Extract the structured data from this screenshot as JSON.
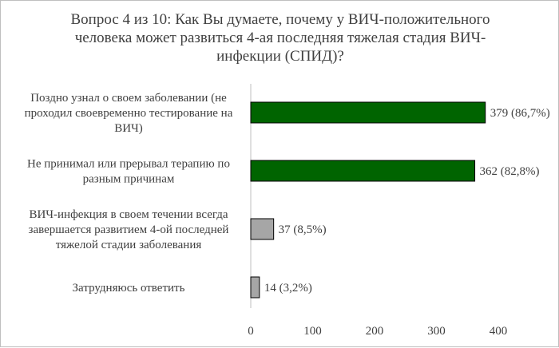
{
  "chart_data": {
    "type": "bar",
    "orientation": "horizontal",
    "title": "Вопрос 4 из 10: Как Вы думаете, почему у ВИЧ-положительного\nчеловека  может развиться  4-ая последняя тяжелая стадия ВИЧ-\nинфекции (СПИД)?",
    "categories": [
      [
        "Поздно узнал о своем заболевании (не",
        "проходил своевременно тестирование на",
        "ВИЧ)"
      ],
      [
        "Не принимал или прерывал терапию по",
        "разным причинам"
      ],
      [
        "ВИЧ-инфекция в своем течении всегда",
        "завершается развитием 4-ой последней",
        "тяжелой стадии заболевания"
      ],
      [
        "Затрудняюсь  ответить"
      ]
    ],
    "values": [
      379,
      362,
      37,
      14
    ],
    "data_labels": [
      "379 (86,7%)",
      "362 (82,8%)",
      "37 (8,5%)",
      "14 (3,2%)"
    ],
    "bar_colors": [
      "#006400",
      "#006400",
      "#a6a6a6",
      "#a6a6a6"
    ],
    "xlim": [
      0,
      400
    ],
    "xticks": [
      0,
      100,
      200,
      300,
      400
    ],
    "xlabel": "",
    "ylabel": "",
    "grid": false,
    "legend": "none"
  }
}
